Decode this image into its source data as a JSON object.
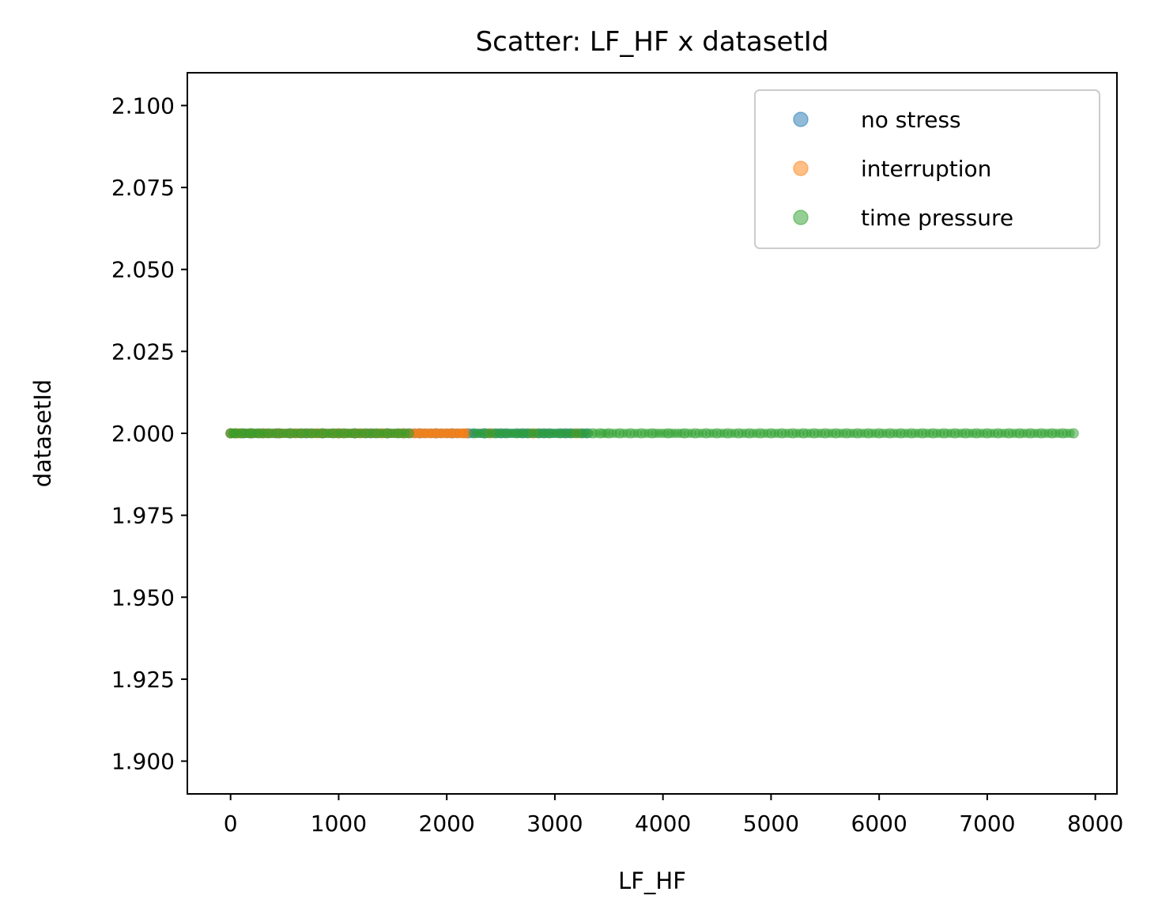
{
  "chart_data": {
    "type": "scatter",
    "title": "Scatter: LF_HF x datasetId",
    "xlabel": "LF_HF",
    "ylabel": "datasetId",
    "xlim": [
      -400,
      8200
    ],
    "ylim": [
      1.89,
      2.11
    ],
    "xticks": [
      0,
      1000,
      2000,
      3000,
      4000,
      5000,
      6000,
      7000,
      8000
    ],
    "xtick_labels": [
      "0",
      "1000",
      "2000",
      "3000",
      "4000",
      "5000",
      "6000",
      "7000",
      "8000"
    ],
    "yticks": [
      1.9,
      1.925,
      1.95,
      1.975,
      2.0,
      2.025,
      2.05,
      2.075,
      2.1
    ],
    "ytick_labels": [
      "1.900",
      "1.925",
      "1.950",
      "1.975",
      "2.000",
      "2.025",
      "2.050",
      "2.075",
      "2.100"
    ],
    "grid": false,
    "legend_position": "top-right",
    "series": [
      {
        "name": "no stress",
        "color": "#1f77b4",
        "x": [
          0,
          50,
          120,
          200,
          300,
          420,
          550,
          700,
          850,
          1000,
          1150,
          1300,
          1450,
          1600,
          1750,
          1900,
          2050,
          2200,
          2350,
          2500,
          2700,
          2900,
          3100,
          3300
        ],
        "y": [
          2,
          2,
          2,
          2,
          2,
          2,
          2,
          2,
          2,
          2,
          2,
          2,
          2,
          2,
          2,
          2,
          2,
          2,
          2,
          2,
          2,
          2,
          2,
          2
        ]
      },
      {
        "name": "interruption",
        "color": "#ff7f0e",
        "x": [
          0,
          80,
          180,
          300,
          450,
          600,
          800,
          1000,
          1200,
          1400,
          1600,
          1700,
          1750,
          1800,
          1850,
          1900,
          1950,
          2000,
          2050,
          2100,
          2150,
          2180,
          2400,
          2800,
          3200
        ],
        "y": [
          2,
          2,
          2,
          2,
          2,
          2,
          2,
          2,
          2,
          2,
          2,
          2,
          2,
          2,
          2,
          2,
          2,
          2,
          2,
          2,
          2,
          2,
          2,
          2,
          2
        ]
      },
      {
        "name": "time pressure",
        "color": "#2ca02c",
        "x": [
          0,
          40,
          100,
          180,
          260,
          350,
          450,
          550,
          650,
          750,
          850,
          950,
          1050,
          1150,
          1250,
          1350,
          1450,
          1550,
          1650,
          2250,
          2350,
          2450,
          2550,
          2650,
          2750,
          2850,
          2950,
          3050,
          3150,
          3250,
          3350,
          3420,
          3500,
          3600,
          3700,
          3800,
          3900,
          4050,
          4200,
          4300,
          4400,
          4500,
          4600,
          4700,
          4800,
          4900,
          5000,
          5100,
          5200,
          5300,
          5400,
          5500,
          5600,
          5700,
          5800,
          5900,
          6000,
          6100,
          6200,
          6300,
          6400,
          6500,
          6600,
          6700,
          6800,
          6900,
          7000,
          7100,
          7200,
          7300,
          7400,
          7500,
          7600,
          7700,
          7800
        ],
        "y": [
          2,
          2,
          2,
          2,
          2,
          2,
          2,
          2,
          2,
          2,
          2,
          2,
          2,
          2,
          2,
          2,
          2,
          2,
          2,
          2,
          2,
          2,
          2,
          2,
          2,
          2,
          2,
          2,
          2,
          2,
          2,
          2,
          2,
          2,
          2,
          2,
          2,
          2,
          2,
          2,
          2,
          2,
          2,
          2,
          2,
          2,
          2,
          2,
          2,
          2,
          2,
          2,
          2,
          2,
          2,
          2,
          2,
          2,
          2,
          2,
          2,
          2,
          2,
          2,
          2,
          2,
          2,
          2,
          2,
          2,
          2,
          2,
          2,
          2,
          2
        ]
      }
    ]
  }
}
